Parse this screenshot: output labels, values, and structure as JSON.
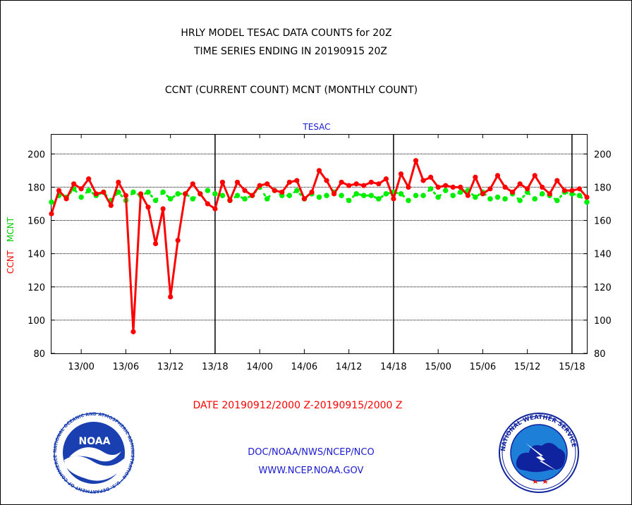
{
  "chart_data": {
    "type": "line",
    "title_lines": [
      "HRLY MODEL TESAC DATA COUNTS for 20Z",
      "TIME SERIES ENDING IN 20190915 20Z"
    ],
    "subtitle": "CCNT (CURRENT COUNT) MCNT (MONTHLY COUNT)",
    "plot_label": "TESAC",
    "ylabel_ccnt": "CCNT",
    "ylabel_mcnt": "MCNT",
    "xlabel": "DATE 20190912/2000 Z-20190915/2000 Z",
    "ylim": [
      80,
      212
    ],
    "y_ticks": [
      80,
      100,
      120,
      140,
      160,
      180,
      200
    ],
    "grid": true,
    "x_range_hours": [
      0,
      72
    ],
    "x_ticks": [
      {
        "hour": 4,
        "label": "13/00"
      },
      {
        "hour": 10,
        "label": "13/06"
      },
      {
        "hour": 16,
        "label": "13/12"
      },
      {
        "hour": 22,
        "label": "13/18"
      },
      {
        "hour": 28,
        "label": "14/00"
      },
      {
        "hour": 34,
        "label": "14/06"
      },
      {
        "hour": 40,
        "label": "14/12"
      },
      {
        "hour": 46,
        "label": "14/18"
      },
      {
        "hour": 52,
        "label": "15/00"
      },
      {
        "hour": 58,
        "label": "15/06"
      },
      {
        "hour": 64,
        "label": "15/12"
      },
      {
        "hour": 70,
        "label": "15/18"
      }
    ],
    "day_boundaries_hours": [
      22,
      46,
      70
    ],
    "series": [
      {
        "name": "CCNT",
        "color": "#ff0000",
        "values": [
          164,
          178,
          173,
          182,
          179,
          185,
          176,
          177,
          169,
          183,
          175,
          93,
          176,
          168,
          146,
          167,
          114,
          148,
          176,
          182,
          176,
          170,
          167,
          183,
          172,
          183,
          178,
          175,
          181,
          182,
          178,
          177,
          183,
          184,
          173,
          177,
          190,
          184,
          176,
          183,
          181,
          182,
          181,
          183,
          182,
          185,
          173,
          188,
          180,
          196,
          184,
          186,
          180,
          181,
          180,
          180,
          175,
          186,
          176,
          179,
          187,
          180,
          177,
          182,
          179,
          187,
          180,
          176,
          184,
          178,
          178,
          179,
          174
        ]
      },
      {
        "name": "MCNT",
        "color": "#00ee00",
        "values": [
          171,
          175,
          174,
          179,
          174,
          178,
          175,
          177,
          172,
          177,
          172,
          177,
          175,
          177,
          172,
          177,
          173,
          176,
          176,
          173,
          176,
          178,
          176,
          175,
          172,
          175,
          173,
          175,
          180,
          173,
          178,
          175,
          175,
          178,
          173,
          176,
          174,
          175,
          177,
          175,
          172,
          176,
          175,
          175,
          173,
          176,
          177,
          176,
          172,
          175,
          175,
          179,
          174,
          178,
          175,
          177,
          178,
          174,
          177,
          173,
          174,
          173,
          176,
          172,
          177,
          173,
          176,
          175,
          172,
          177,
          176,
          175,
          171
        ]
      }
    ]
  },
  "footer": {
    "org_line": "DOC/NOAA/NWS/NCEP/NCO",
    "url_line": "WWW.NCEP.NOAA.GOV",
    "noaa_logo_text": "NOAA",
    "noaa_ring_text": "NATIONAL OCEANIC AND ATMOSPHERIC ADMINISTRATION · U.S. DEPARTMENT OF COMMERCE ·",
    "nws_ring_text": "NATIONAL WEATHER SERVICE"
  },
  "colors": {
    "title": "#000000",
    "footer_text": "#1a1ad0",
    "date_label": "#ff0000",
    "plot_label": "#1a1ad0",
    "noaa_blue": "#1a3fb0",
    "nws_blue": "#1d7fd8",
    "nws_navy": "#10239e"
  }
}
